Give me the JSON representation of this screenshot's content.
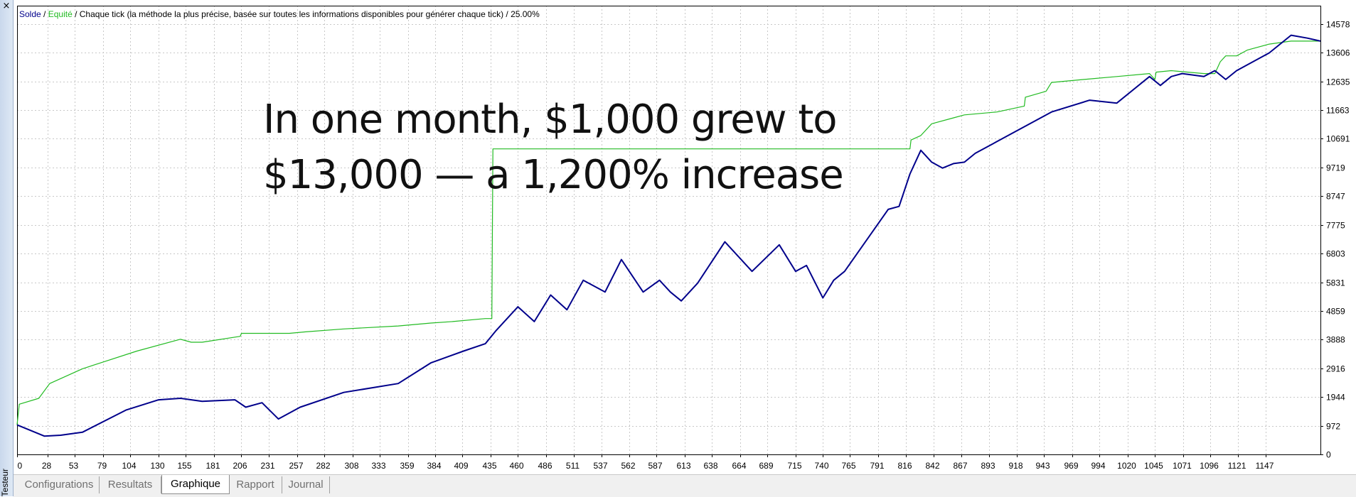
{
  "window": {
    "close_label": "×",
    "side_label": "Testeur"
  },
  "header": {
    "series1": "Solde",
    "sep1": " / ",
    "series2": "Equité",
    "rest": " / Chaque tick (la méthode la plus précise, basée sur toutes les informations disponibles pour générer chaque tick) / 25.00%"
  },
  "overlay": {
    "line1": "In one month, $1,000 grew to",
    "line2": "$13,000 — a 1,200% increase"
  },
  "tabs": [
    {
      "label": "Configurations",
      "active": false
    },
    {
      "label": "Resultats",
      "active": false
    },
    {
      "label": "Graphique",
      "active": true
    },
    {
      "label": "Rapport",
      "active": false
    },
    {
      "label": "Journal",
      "active": false
    }
  ],
  "colors": {
    "balance": "#00008b",
    "equity": "#22bb22",
    "grid": "#c8c8c8"
  },
  "chart_data": {
    "type": "line",
    "xlabel": "",
    "ylabel": "",
    "x_ticks": [
      0,
      28,
      53,
      79,
      104,
      130,
      155,
      181,
      206,
      231,
      257,
      282,
      308,
      333,
      359,
      384,
      409,
      435,
      460,
      486,
      511,
      537,
      562,
      587,
      613,
      638,
      664,
      689,
      715,
      740,
      765,
      791,
      816,
      842,
      867,
      893,
      918,
      943,
      969,
      994,
      1020,
      1045,
      1071,
      1096,
      1121,
      1147
    ],
    "y_ticks": [
      0,
      972,
      1944,
      2916,
      3888,
      4859,
      5831,
      6803,
      7775,
      8747,
      9719,
      10691,
      11663,
      12635,
      13606,
      14578
    ],
    "xlim": [
      0,
      1197
    ],
    "ylim": [
      0,
      15200
    ],
    "grid": true,
    "series": [
      {
        "name": "Solde",
        "x": [
          0,
          25,
          40,
          60,
          100,
          130,
          150,
          170,
          200,
          210,
          225,
          240,
          260,
          300,
          350,
          380,
          410,
          430,
          440,
          460,
          475,
          490,
          505,
          520,
          540,
          555,
          575,
          590,
          600,
          610,
          625,
          650,
          675,
          700,
          715,
          725,
          740,
          750,
          760,
          800,
          810,
          820,
          830,
          840,
          850,
          860,
          870,
          880,
          890,
          900,
          950,
          985,
          1010,
          1040,
          1050,
          1060,
          1070,
          1090,
          1100,
          1110,
          1120,
          1150,
          1170,
          1185,
          1197
        ],
        "y": [
          1000,
          620,
          650,
          750,
          1500,
          1850,
          1900,
          1800,
          1850,
          1600,
          1750,
          1200,
          1600,
          2100,
          2400,
          3100,
          3500,
          3750,
          4200,
          5000,
          4500,
          5400,
          4900,
          5900,
          5500,
          6600,
          5500,
          5900,
          5500,
          5200,
          5800,
          7200,
          6200,
          7100,
          6200,
          6400,
          5300,
          5900,
          6200,
          8300,
          8400,
          9500,
          10300,
          9900,
          9700,
          9850,
          9900,
          10200,
          10400,
          10600,
          11600,
          12000,
          11900,
          12800,
          12500,
          12800,
          12900,
          12800,
          13000,
          12700,
          13000,
          13600,
          14200,
          14100,
          14000
        ]
      },
      {
        "name": "Equité",
        "x": [
          0,
          2,
          20,
          30,
          60,
          110,
          150,
          160,
          170,
          205,
          206,
          210,
          250,
          265,
          300,
          350,
          380,
          400,
          430,
          436,
          437,
          820,
          821,
          830,
          840,
          860,
          870,
          900,
          925,
          926,
          945,
          950,
          980,
          1010,
          1040,
          1045,
          1046,
          1060,
          1090,
          1100,
          1105,
          1110,
          1120,
          1130,
          1150,
          1170,
          1197
        ],
        "y": [
          1000,
          1700,
          1900,
          2400,
          2900,
          3500,
          3900,
          3800,
          3800,
          4000,
          4100,
          4100,
          4100,
          4150,
          4250,
          4350,
          4450,
          4500,
          4600,
          4600,
          10350,
          10350,
          10650,
          10800,
          11200,
          11400,
          11500,
          11600,
          11800,
          12100,
          12300,
          12600,
          12700,
          12800,
          12900,
          12700,
          12950,
          13000,
          12900,
          12900,
          13300,
          13500,
          13500,
          13700,
          13900,
          14000,
          14000
        ]
      }
    ]
  }
}
